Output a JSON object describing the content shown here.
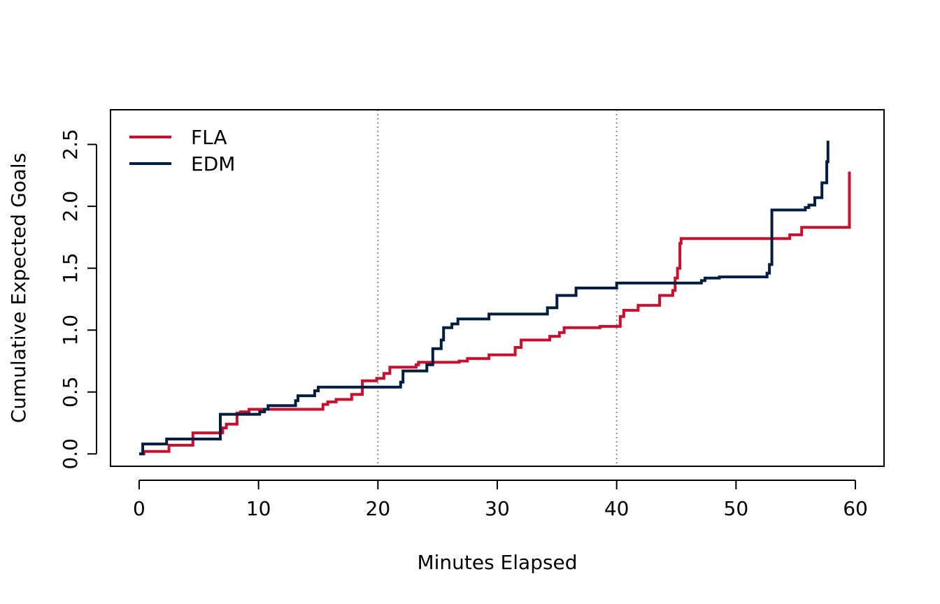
{
  "chart_data": {
    "type": "line",
    "step": true,
    "xlabel": "Minutes Elapsed",
    "ylabel": "Cumulative Expected Goals",
    "xlim": [
      -2.4,
      62.4
    ],
    "ylim": [
      -0.1,
      2.78
    ],
    "xticks": [
      0,
      10,
      20,
      30,
      40,
      50,
      60
    ],
    "yticks": [
      0.0,
      0.5,
      1.0,
      1.5,
      2.0,
      2.5
    ],
    "xtick_labels": [
      "0",
      "10",
      "20",
      "30",
      "40",
      "50",
      "60"
    ],
    "ytick_labels": [
      "0.0",
      "0.5",
      "1.0",
      "1.5",
      "2.0",
      "2.5"
    ],
    "reference_lines_x": [
      20,
      40
    ],
    "grid": false,
    "legend_position": "top-left",
    "series": [
      {
        "name": "FLA",
        "color": "#C8102E",
        "points": [
          [
            0,
            0
          ],
          [
            0.4,
            0
          ],
          [
            0.4,
            0.02
          ],
          [
            2.5,
            0.02
          ],
          [
            2.5,
            0.07
          ],
          [
            4.5,
            0.07
          ],
          [
            4.5,
            0.17
          ],
          [
            7,
            0.17
          ],
          [
            7,
            0.21
          ],
          [
            7.3,
            0.21
          ],
          [
            7.3,
            0.24
          ],
          [
            8.2,
            0.24
          ],
          [
            8.2,
            0.33
          ],
          [
            8.5,
            0.33
          ],
          [
            8.5,
            0.34
          ],
          [
            9.2,
            0.34
          ],
          [
            9.2,
            0.36
          ],
          [
            15.4,
            0.36
          ],
          [
            15.4,
            0.4
          ],
          [
            15.8,
            0.4
          ],
          [
            15.8,
            0.42
          ],
          [
            16.5,
            0.42
          ],
          [
            16.5,
            0.44
          ],
          [
            17.8,
            0.44
          ],
          [
            17.8,
            0.48
          ],
          [
            18.7,
            0.48
          ],
          [
            18.7,
            0.59
          ],
          [
            19.9,
            0.59
          ],
          [
            19.9,
            0.61
          ],
          [
            20.5,
            0.61
          ],
          [
            20.5,
            0.65
          ],
          [
            21,
            0.65
          ],
          [
            21,
            0.7
          ],
          [
            23.2,
            0.7
          ],
          [
            23.2,
            0.72
          ],
          [
            23.4,
            0.72
          ],
          [
            23.4,
            0.74
          ],
          [
            26.8,
            0.74
          ],
          [
            26.8,
            0.75
          ],
          [
            27.5,
            0.75
          ],
          [
            27.5,
            0.77
          ],
          [
            29.3,
            0.77
          ],
          [
            29.3,
            0.8
          ],
          [
            31.5,
            0.8
          ],
          [
            31.5,
            0.86
          ],
          [
            32,
            0.86
          ],
          [
            32,
            0.92
          ],
          [
            34.4,
            0.92
          ],
          [
            34.4,
            0.95
          ],
          [
            35.2,
            0.95
          ],
          [
            35.2,
            0.98
          ],
          [
            35.6,
            0.98
          ],
          [
            35.6,
            1.02
          ],
          [
            38.6,
            1.02
          ],
          [
            38.6,
            1.03
          ],
          [
            40.3,
            1.03
          ],
          [
            40.3,
            1.11
          ],
          [
            40.6,
            1.11
          ],
          [
            40.6,
            1.16
          ],
          [
            41.8,
            1.16
          ],
          [
            41.8,
            1.2
          ],
          [
            43.6,
            1.2
          ],
          [
            43.6,
            1.28
          ],
          [
            44.7,
            1.28
          ],
          [
            44.7,
            1.32
          ],
          [
            44.9,
            1.32
          ],
          [
            44.9,
            1.42
          ],
          [
            45.1,
            1.42
          ],
          [
            45.1,
            1.5
          ],
          [
            45.3,
            1.5
          ],
          [
            45.3,
            1.7
          ],
          [
            45.4,
            1.7
          ],
          [
            45.4,
            1.74
          ],
          [
            54.5,
            1.74
          ],
          [
            54.5,
            1.77
          ],
          [
            55.5,
            1.77
          ],
          [
            55.5,
            1.83
          ],
          [
            59.5,
            1.83
          ],
          [
            59.5,
            2.28
          ]
        ]
      },
      {
        "name": "EDM",
        "color": "#041E42",
        "points": [
          [
            0,
            0
          ],
          [
            0.3,
            0
          ],
          [
            0.3,
            0.08
          ],
          [
            2.3,
            0.08
          ],
          [
            2.3,
            0.12
          ],
          [
            6.8,
            0.12
          ],
          [
            6.8,
            0.32
          ],
          [
            10.1,
            0.32
          ],
          [
            10.1,
            0.34
          ],
          [
            10.5,
            0.34
          ],
          [
            10.5,
            0.36
          ],
          [
            10.8,
            0.36
          ],
          [
            10.8,
            0.39
          ],
          [
            13.1,
            0.39
          ],
          [
            13.1,
            0.43
          ],
          [
            13.3,
            0.43
          ],
          [
            13.3,
            0.47
          ],
          [
            14.7,
            0.47
          ],
          [
            14.7,
            0.51
          ],
          [
            15,
            0.51
          ],
          [
            15,
            0.54
          ],
          [
            21.9,
            0.54
          ],
          [
            21.9,
            0.58
          ],
          [
            22.1,
            0.58
          ],
          [
            22.1,
            0.67
          ],
          [
            24.1,
            0.67
          ],
          [
            24.1,
            0.72
          ],
          [
            24.6,
            0.72
          ],
          [
            24.6,
            0.85
          ],
          [
            25.3,
            0.85
          ],
          [
            25.3,
            0.92
          ],
          [
            25.5,
            0.92
          ],
          [
            25.5,
            1.02
          ],
          [
            26.2,
            1.02
          ],
          [
            26.2,
            1.05
          ],
          [
            26.7,
            1.05
          ],
          [
            26.7,
            1.09
          ],
          [
            29.3,
            1.09
          ],
          [
            29.3,
            1.13
          ],
          [
            34.2,
            1.13
          ],
          [
            34.2,
            1.18
          ],
          [
            35,
            1.18
          ],
          [
            35,
            1.28
          ],
          [
            36.6,
            1.28
          ],
          [
            36.6,
            1.34
          ],
          [
            40,
            1.34
          ],
          [
            40,
            1.38
          ],
          [
            47.1,
            1.38
          ],
          [
            47.1,
            1.4
          ],
          [
            47.4,
            1.4
          ],
          [
            47.4,
            1.42
          ],
          [
            48.6,
            1.42
          ],
          [
            48.6,
            1.43
          ],
          [
            52.6,
            1.43
          ],
          [
            52.6,
            1.46
          ],
          [
            52.8,
            1.46
          ],
          [
            52.8,
            1.53
          ],
          [
            53,
            1.53
          ],
          [
            53,
            1.97
          ],
          [
            55.8,
            1.97
          ],
          [
            55.8,
            1.99
          ],
          [
            56.1,
            1.99
          ],
          [
            56.1,
            2.01
          ],
          [
            56.6,
            2.01
          ],
          [
            56.6,
            2.07
          ],
          [
            57.2,
            2.07
          ],
          [
            57.2,
            2.19
          ],
          [
            57.6,
            2.19
          ],
          [
            57.6,
            2.36
          ],
          [
            57.7,
            2.36
          ],
          [
            57.7,
            2.53
          ]
        ]
      }
    ]
  }
}
